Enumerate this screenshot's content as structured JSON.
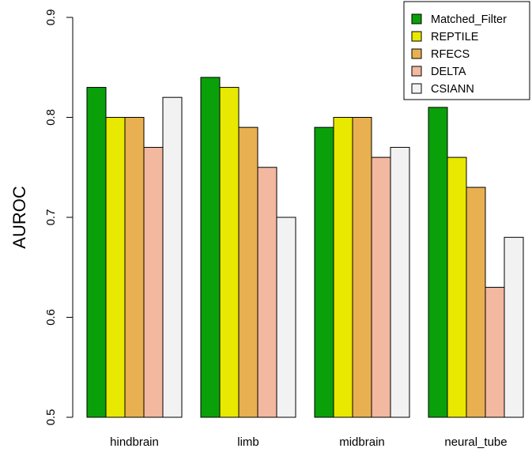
{
  "chart_data": {
    "type": "bar",
    "title": "",
    "xlabel": "",
    "ylabel": "AUROC",
    "ylim": [
      0.5,
      0.9
    ],
    "yticks": [
      "0.5",
      "0.6",
      "0.7",
      "0.8",
      "0.9"
    ],
    "categories": [
      "hindbrain",
      "limb",
      "midbrain",
      "neural_tube"
    ],
    "series": [
      {
        "name": "Matched_Filter",
        "color": "#0aa00a",
        "values": [
          0.83,
          0.84,
          0.79,
          0.81
        ]
      },
      {
        "name": "REPTILE",
        "color": "#e8e800",
        "values": [
          0.8,
          0.83,
          0.8,
          0.76
        ]
      },
      {
        "name": "RFECS",
        "color": "#e8b050",
        "values": [
          0.8,
          0.79,
          0.8,
          0.73
        ]
      },
      {
        "name": "DELTA",
        "color": "#f2b8a0",
        "values": [
          0.77,
          0.75,
          0.76,
          0.63
        ]
      },
      {
        "name": "CSIANN",
        "color": "#f2f2f2",
        "values": [
          0.82,
          0.7,
          0.77,
          0.68
        ]
      }
    ],
    "legend_position": "top-right",
    "grid": false
  }
}
